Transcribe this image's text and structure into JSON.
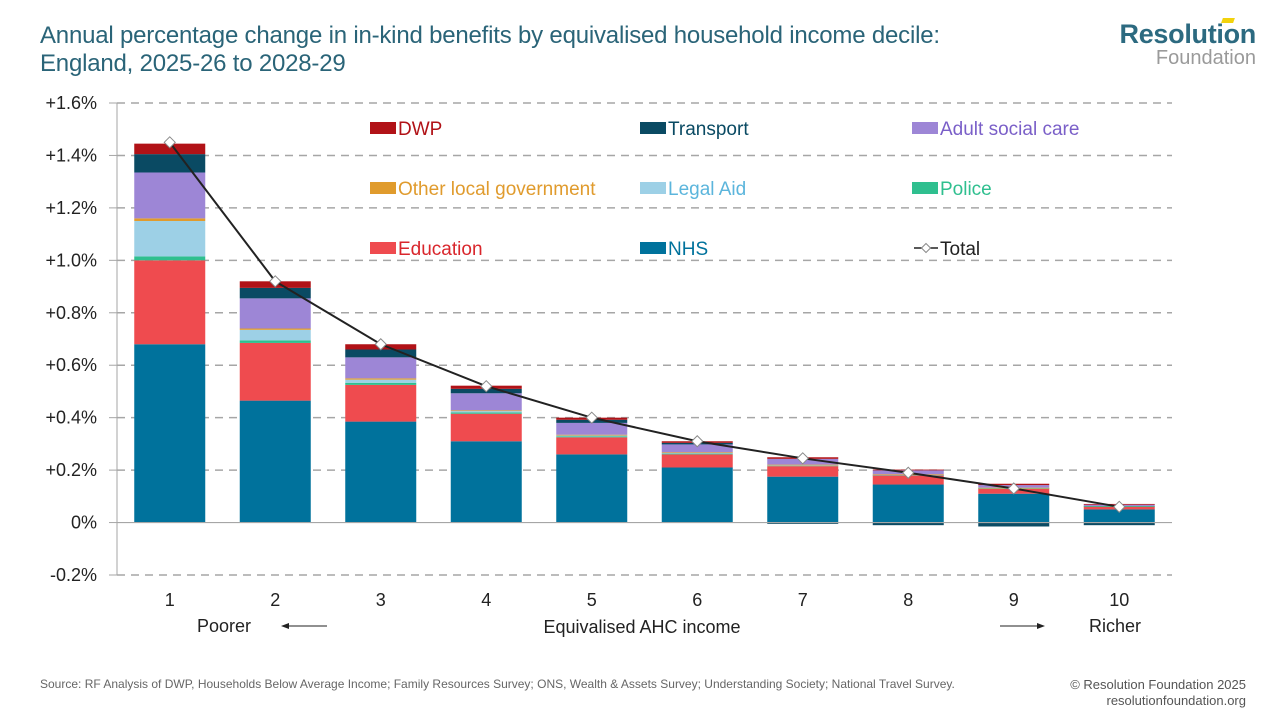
{
  "header": {
    "title_line1": "Annual percentage change in in-kind benefits by equivalised household income decile:",
    "title_line2": "England, 2025-26 to 2028-29",
    "logo_top": "Resolution",
    "logo_bottom": "Foundation"
  },
  "footer": {
    "source": "Source: RF Analysis of DWP, Households Below Average Income; Family Resources Survey; ONS, Wealth & Assets Survey; Understanding Society; National Travel Survey.",
    "copyright": "© Resolution Foundation 2025",
    "website": "resolutionfoundation.org"
  },
  "chart_data": {
    "type": "bar",
    "stacked": true,
    "title": "Annual percentage change in in-kind benefits by equivalised household income decile: England, 2025-26 to 2028-29",
    "xlabel": "Equivalised AHC income",
    "x_left_annotation": "Poorer",
    "x_right_annotation": "Richer",
    "ylabel": "",
    "ylim": [
      -0.2,
      1.6
    ],
    "yticks": [
      -0.2,
      0,
      0.2,
      0.4,
      0.6,
      0.8,
      1.0,
      1.2,
      1.4,
      1.6
    ],
    "ytick_labels": [
      "-0.2%",
      "0%",
      "+0.2%",
      "+0.4%",
      "+0.6%",
      "+0.8%",
      "+1.0%",
      "+1.2%",
      "+1.4%",
      "+1.6%"
    ],
    "grid": true,
    "legend_position": "top",
    "categories": [
      "1",
      "2",
      "3",
      "4",
      "5",
      "6",
      "7",
      "8",
      "9",
      "10"
    ],
    "series": [
      {
        "name": "NHS",
        "color": "#00729c",
        "values": [
          0.68,
          0.465,
          0.385,
          0.31,
          0.26,
          0.21,
          0.175,
          0.145,
          0.11,
          0.05
        ]
      },
      {
        "name": "Education",
        "color": "#ef4b4f",
        "values": [
          0.32,
          0.22,
          0.14,
          0.105,
          0.065,
          0.05,
          0.04,
          0.035,
          0.02,
          0.012
        ]
      },
      {
        "name": "Police",
        "color": "#2fbf8f",
        "values": [
          0.015,
          0.01,
          0.008,
          0.005,
          0.004,
          0.003,
          0.003,
          0.002,
          0.001,
          0.001
        ]
      },
      {
        "name": "Legal Aid",
        "color": "#9dd0e6",
        "values": [
          0.135,
          0.04,
          0.012,
          0.005,
          0.004,
          0.003,
          0.001,
          0.001,
          0.001,
          0.0
        ]
      },
      {
        "name": "Other local government",
        "color": "#e09b2d",
        "values": [
          0.01,
          0.005,
          0.005,
          0.003,
          0.002,
          0.002,
          0.002,
          0.001,
          0.001,
          0.0
        ]
      },
      {
        "name": "Adult social care",
        "color": "#9d86d6",
        "values": [
          0.175,
          0.115,
          0.08,
          0.065,
          0.045,
          0.03,
          0.022,
          0.015,
          0.01,
          0.005
        ]
      },
      {
        "name": "Transport",
        "color": "#0a4a63",
        "values": [
          0.07,
          0.04,
          0.03,
          0.017,
          0.012,
          0.006,
          -0.005,
          -0.01,
          -0.015,
          -0.01
        ]
      },
      {
        "name": "DWP",
        "color": "#b11217",
        "values": [
          0.04,
          0.025,
          0.02,
          0.012,
          0.008,
          0.006,
          0.006,
          0.003,
          0.005,
          0.003
        ]
      }
    ],
    "total": {
      "name": "Total",
      "color": "#222222",
      "values": [
        1.45,
        0.92,
        0.68,
        0.52,
        0.4,
        0.31,
        0.245,
        0.19,
        0.13,
        0.06
      ]
    },
    "legend_order": [
      "DWP",
      "Transport",
      "Adult social care",
      "Other local government",
      "Legal Aid",
      "Police",
      "Education",
      "NHS",
      "Total"
    ],
    "legend_text_colors": {
      "DWP": "#b11217",
      "Transport": "#0a4a63",
      "Adult social care": "#7a5fc8",
      "Other local government": "#e09b2d",
      "Legal Aid": "#5bb5dc",
      "Police": "#2fbf8f",
      "Education": "#d9262c",
      "NHS": "#00729c",
      "Total": "#222222"
    }
  }
}
